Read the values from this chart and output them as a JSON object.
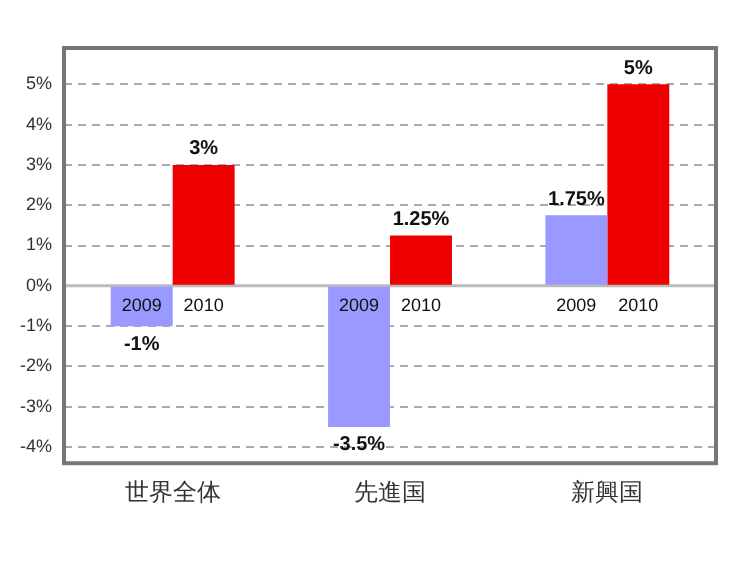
{
  "chart_data": {
    "type": "bar",
    "categories": [
      "世界全体",
      "先進国",
      "新興国"
    ],
    "series": [
      {
        "name": "2009",
        "color": "#9999ff",
        "values": [
          -1,
          -3.5,
          1.75
        ],
        "value_labels": [
          "-1%",
          "-3.5%",
          "1.75%"
        ]
      },
      {
        "name": "2010",
        "color": "#ee0000",
        "values": [
          3,
          1.25,
          5
        ],
        "value_labels": [
          "3%",
          "1.25%",
          "5%"
        ]
      }
    ],
    "ylim": [
      -4.4,
      5.9
    ],
    "yticks": [
      {
        "value": -4,
        "label": "-4%"
      },
      {
        "value": -3,
        "label": "-3%"
      },
      {
        "value": -2,
        "label": "-2%"
      },
      {
        "value": -1,
        "label": "-1%"
      },
      {
        "value": 0,
        "label": "0%"
      },
      {
        "value": 1,
        "label": "1%"
      },
      {
        "value": 2,
        "label": "2%"
      },
      {
        "value": 3,
        "label": "3%"
      },
      {
        "value": 4,
        "label": "4%"
      },
      {
        "value": 5,
        "label": "5%"
      }
    ],
    "grid": "y",
    "legend": false
  }
}
